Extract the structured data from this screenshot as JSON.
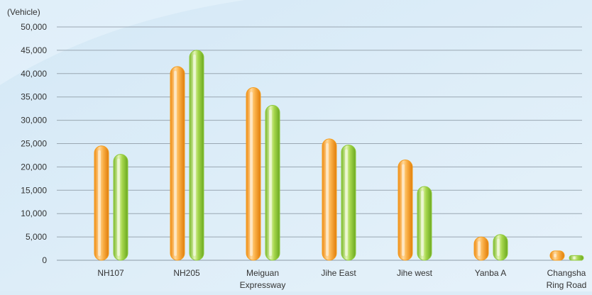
{
  "chart_data": {
    "type": "bar",
    "unit_label": "(Vehicle)",
    "categories": [
      [
        "NH107"
      ],
      [
        "NH205"
      ],
      [
        "Meiguan",
        "Expressway"
      ],
      [
        "Jihe East"
      ],
      [
        "Jihe west"
      ],
      [
        "Yanba A"
      ],
      [
        "Changsha",
        "Ring Road"
      ]
    ],
    "series": [
      {
        "values": [
          24500,
          41500,
          37000,
          26000,
          21500,
          5000,
          2000
        ],
        "color": "#f39c1e"
      },
      {
        "values": [
          22700,
          45000,
          33200,
          24700,
          15800,
          5500,
          1000
        ],
        "color": "#8fc93a"
      }
    ],
    "ylim": [
      0,
      50000
    ],
    "yticks": [
      "0",
      "5,000",
      "10,000",
      "15,000",
      "20,000",
      "25,000",
      "30,000",
      "35,000",
      "40,000",
      "45,000",
      "50,000"
    ],
    "grid": true,
    "legend": "none"
  }
}
